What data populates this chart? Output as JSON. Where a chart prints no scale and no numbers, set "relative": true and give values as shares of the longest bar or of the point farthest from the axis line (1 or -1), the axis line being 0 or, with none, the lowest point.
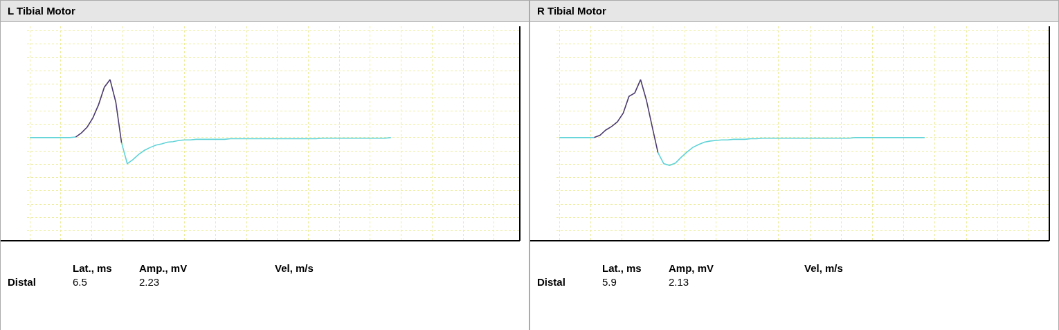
{
  "chart_data": [
    {
      "type": "line",
      "title": "L Tibial Motor",
      "relative": true,
      "grid": true,
      "categories": [
        null,
        null,
        null,
        null,
        null,
        null,
        null,
        null,
        null,
        null,
        null,
        null,
        null,
        null,
        null,
        null,
        null,
        null,
        null,
        null,
        null,
        null,
        null,
        null,
        null,
        null,
        null,
        null,
        null,
        null,
        null,
        null,
        null,
        null,
        null,
        null,
        null,
        null,
        null,
        null,
        null,
        null,
        null,
        null,
        null,
        null,
        null,
        null,
        null,
        null,
        null,
        null,
        null,
        null,
        null,
        null,
        null,
        null,
        null,
        null,
        null,
        null,
        null,
        null,
        null,
        null,
        null,
        null,
        null,
        null,
        null,
        null,
        null,
        null,
        null,
        null,
        null,
        null,
        null,
        null,
        null,
        null,
        null,
        null,
        null,
        null
      ],
      "series": [
        {
          "color": "#5fd3d8",
          "values": [
            0,
            0,
            0,
            0,
            0,
            0,
            0,
            0,
            0.01,
            null,
            null,
            null,
            null,
            null,
            null,
            null,
            -0.09,
            -0.45,
            -0.38,
            -0.29,
            -0.22,
            -0.17,
            -0.13,
            -0.11,
            -0.08,
            -0.07,
            -0.05,
            -0.04,
            -0.04,
            -0.03,
            -0.03,
            -0.03,
            -0.03,
            -0.03,
            -0.03,
            -0.02,
            -0.02,
            -0.02,
            -0.02,
            -0.02,
            -0.02,
            -0.02,
            -0.02,
            -0.02,
            -0.02,
            -0.02,
            -0.02,
            -0.02,
            -0.02,
            -0.02,
            -0.02,
            -0.01,
            -0.01,
            -0.01,
            -0.01,
            -0.01,
            -0.01,
            -0.01,
            -0.01,
            -0.01,
            -0.01,
            -0.01,
            -0.01,
            0,
            null,
            null,
            null,
            null,
            null,
            null,
            null,
            null,
            null,
            null,
            null,
            null,
            null,
            null,
            null,
            null,
            null,
            null,
            null,
            null,
            null,
            null
          ]
        },
        {
          "color": "#4b3a6e",
          "values": [
            null,
            null,
            null,
            null,
            null,
            null,
            null,
            null,
            0.01,
            0.08,
            0.18,
            0.34,
            0.57,
            0.87,
            1,
            0.61,
            -0.09,
            null,
            null,
            null,
            null,
            null,
            null,
            null,
            null,
            null,
            null,
            null,
            null,
            null,
            null,
            null,
            null,
            null,
            null,
            null,
            null,
            null,
            null,
            null,
            null,
            null,
            null,
            null,
            null,
            null,
            null,
            null,
            null,
            null,
            null,
            null,
            null,
            null,
            null,
            null,
            null,
            null,
            null,
            null,
            null,
            null,
            null,
            null,
            null,
            null,
            null,
            null,
            null,
            null,
            null,
            null,
            null,
            null,
            null,
            null,
            null,
            null,
            null,
            null,
            null,
            null,
            null,
            null,
            null,
            null
          ]
        }
      ],
      "annotations": [
        "Lat., ms",
        "Amp., mV",
        "Vel, m/s",
        "Distal",
        "6.5",
        "2.23"
      ]
    },
    {
      "type": "line",
      "title": "R Tibial Motor",
      "relative": true,
      "grid": true,
      "categories": [
        null,
        null,
        null,
        null,
        null,
        null,
        null,
        null,
        null,
        null,
        null,
        null,
        null,
        null,
        null,
        null,
        null,
        null,
        null,
        null,
        null,
        null,
        null,
        null,
        null,
        null,
        null,
        null,
        null,
        null,
        null,
        null,
        null,
        null,
        null,
        null,
        null,
        null,
        null,
        null,
        null,
        null,
        null,
        null,
        null,
        null,
        null,
        null,
        null,
        null,
        null,
        null,
        null,
        null,
        null,
        null,
        null,
        null,
        null,
        null,
        null,
        null,
        null,
        null,
        null,
        null,
        null,
        null,
        null,
        null,
        null,
        null,
        null,
        null,
        null,
        null,
        null,
        null,
        null,
        null,
        null,
        null,
        null,
        null,
        null
      ],
      "series": [
        {
          "color": "#5fd3d8",
          "values": [
            0,
            0,
            0,
            0,
            0,
            0,
            0,
            null,
            null,
            null,
            null,
            null,
            null,
            null,
            null,
            null,
            null,
            -0.26,
            -0.45,
            -0.48,
            -0.44,
            -0.34,
            -0.25,
            -0.17,
            -0.12,
            -0.08,
            -0.06,
            -0.05,
            -0.04,
            -0.04,
            -0.03,
            -0.03,
            -0.03,
            -0.02,
            -0.02,
            -0.01,
            -0.01,
            -0.01,
            -0.01,
            -0.01,
            -0.01,
            -0.01,
            -0.01,
            -0.01,
            -0.01,
            -0.01,
            -0.01,
            -0.01,
            -0.01,
            -0.01,
            -0.01,
            0,
            0,
            0,
            0,
            0,
            0,
            0,
            0,
            0,
            0,
            0,
            0,
            0,
            null,
            null,
            null,
            null,
            null,
            null,
            null,
            null,
            null,
            null,
            null,
            null,
            null,
            null,
            null,
            null,
            null,
            null,
            null,
            null,
            null
          ]
        },
        {
          "color": "#4b3a6e",
          "values": [
            null,
            null,
            null,
            null,
            null,
            null,
            0,
            0.04,
            0.13,
            0.19,
            0.27,
            0.42,
            0.71,
            0.77,
            1,
            0.65,
            0.19,
            -0.26,
            null,
            null,
            null,
            null,
            null,
            null,
            null,
            null,
            null,
            null,
            null,
            null,
            null,
            null,
            null,
            null,
            null,
            null,
            null,
            null,
            null,
            null,
            null,
            null,
            null,
            null,
            null,
            null,
            null,
            null,
            null,
            null,
            null,
            null,
            null,
            null,
            null,
            null,
            null,
            null,
            null,
            null,
            null,
            null,
            null,
            null,
            null,
            null,
            null,
            null,
            null,
            null,
            null,
            null,
            null,
            null,
            null,
            null,
            null,
            null,
            null,
            null,
            null,
            null,
            null,
            null,
            null
          ]
        }
      ],
      "annotations": [
        "Lat., ms",
        "Amp, mV",
        "Vel, m/s",
        "Distal",
        "5.9",
        "2.13"
      ]
    }
  ]
}
